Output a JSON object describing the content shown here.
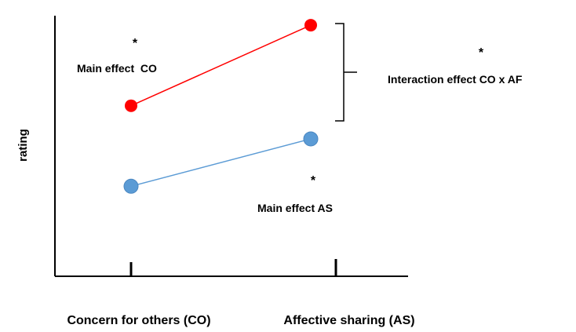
{
  "chart_data": {
    "type": "line",
    "title": "",
    "xlabel": "",
    "ylabel": "rating",
    "categories": [
      "Concern for others (CO)",
      "Affective sharing (AS)"
    ],
    "grid": false,
    "legend": "none",
    "series": [
      {
        "color": "#ff0000",
        "values": [
          0.72,
          1.06
        ]
      },
      {
        "color": "#5b9bd5",
        "values": [
          0.38,
          0.58
        ]
      }
    ],
    "ylim": [
      0,
      1.1
    ],
    "annotations": [
      {
        "text": "Main effect  CO",
        "marker": "*"
      },
      {
        "text": "Main effect AS",
        "marker": "*"
      },
      {
        "text": "Interaction effect CO x AF",
        "marker": "*"
      }
    ]
  }
}
